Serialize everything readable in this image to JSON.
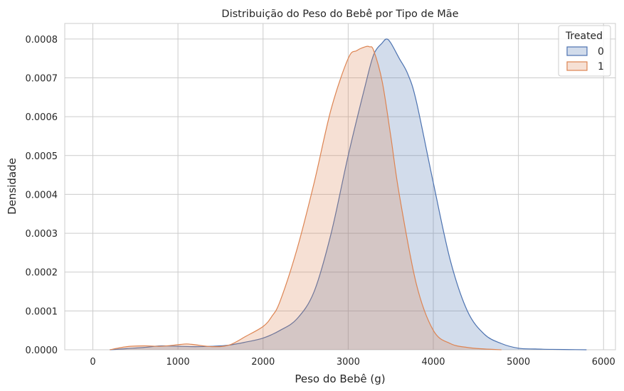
{
  "chart_data": {
    "type": "area",
    "title": "Distribuição do Peso do Bebê por Tipo de Mãe",
    "xlabel": "Peso do Bebê (g)",
    "ylabel": "Densidade",
    "xlim": [
      -330,
      6140
    ],
    "ylim": [
      0,
      0.00084
    ],
    "xticks": [
      0,
      1000,
      2000,
      3000,
      4000,
      5000,
      6000
    ],
    "xtick_labels": [
      "0",
      "1000",
      "2000",
      "3000",
      "4000",
      "5000",
      "6000"
    ],
    "yticks": [
      0,
      0.0001,
      0.0002,
      0.0003,
      0.0004,
      0.0005,
      0.0006,
      0.0007,
      0.0008
    ],
    "ytick_labels": [
      "0.0000",
      "0.0001",
      "0.0002",
      "0.0003",
      "0.0004",
      "0.0005",
      "0.0006",
      "0.0007",
      "0.0008"
    ],
    "grid": true,
    "legend": {
      "title": "Treated",
      "placement": "top-right"
    },
    "series": [
      {
        "name": "0",
        "color": "#4c72b0",
        "x": [
          200,
          400,
          600,
          800,
          1000,
          1200,
          1400,
          1600,
          1800,
          2000,
          2200,
          2400,
          2600,
          2800,
          3000,
          3200,
          3300,
          3400,
          3450,
          3500,
          3600,
          3700,
          3800,
          4000,
          4200,
          4400,
          4600,
          4800,
          5000,
          5200,
          5400,
          5600,
          5800
        ],
        "values": [
          0.0,
          3e-06,
          6e-06,
          1e-05,
          9e-06,
          8e-06,
          9e-06,
          1.2e-05,
          2e-05,
          3e-05,
          5e-05,
          8e-05,
          0.00015,
          0.0003,
          0.0005,
          0.00068,
          0.00076,
          0.00079,
          0.0008,
          0.00079,
          0.00075,
          0.00071,
          0.00064,
          0.00043,
          0.00023,
          0.0001,
          4e-05,
          1.6e-05,
          4e-06,
          2e-06,
          1e-06,
          5e-07,
          0.0
        ]
      },
      {
        "name": "1",
        "color": "#dd8452",
        "x": [
          200,
          400,
          600,
          800,
          1000,
          1100,
          1200,
          1400,
          1600,
          1800,
          2000,
          2100,
          2200,
          2400,
          2600,
          2800,
          3000,
          3100,
          3200,
          3250,
          3300,
          3400,
          3500,
          3600,
          3800,
          4000,
          4200,
          4400,
          4600,
          4800
        ],
        "values": [
          0.0,
          8e-06,
          1e-05,
          9e-06,
          1.3e-05,
          1.5e-05,
          1.3e-05,
          8e-06,
          1.2e-05,
          3.5e-05,
          6e-05,
          8.5e-05,
          0.000125,
          0.00026,
          0.00043,
          0.00062,
          0.00075,
          0.00077,
          0.00078,
          0.00078,
          0.00077,
          0.00069,
          0.00055,
          0.0004,
          0.00017,
          5e-05,
          1.6e-05,
          6e-06,
          2e-06,
          0.0
        ]
      }
    ]
  }
}
